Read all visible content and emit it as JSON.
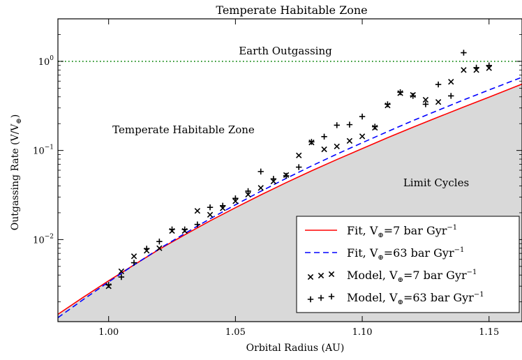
{
  "chart_data": {
    "type": "scatter",
    "title": "Temperate Habitable Zone",
    "xlabel": "Orbital Radius (AU)",
    "ylabel": "Outgassing Rate (V/V",
    "ylabel_sub": "⊕",
    "ylabel_close": ")",
    "xlim": [
      0.98,
      1.163
    ],
    "ylim": [
      0.0012,
      3.0
    ],
    "yscale": "log",
    "x_ticks": [
      1.0,
      1.05,
      1.1,
      1.15
    ],
    "x_tick_labels": [
      "1.00",
      "1.05",
      "1.10",
      "1.15"
    ],
    "y_ticks": [
      0.01,
      0.1,
      1
    ],
    "y_tick_labels": [
      {
        "base": "10",
        "exp": "−2"
      },
      {
        "base": "10",
        "exp": "−1"
      },
      {
        "base": "10",
        "exp": "0"
      }
    ],
    "grid": false,
    "legend_position": "lower-right",
    "annotations": {
      "earth": "Earth Outgassing",
      "thz": "Temperate Habitable Zone",
      "limit": "Limit Cycles"
    },
    "earth_line": 1.0,
    "series": [
      {
        "name_pre": "Fit, V",
        "name_sub": "⊕",
        "name_post": "=7 bar Gyr",
        "name_sup": "−1",
        "style": "line",
        "color": "#ff0000",
        "x": [
          0.98,
          0.99,
          1.0,
          1.01,
          1.02,
          1.03,
          1.04,
          1.05,
          1.06,
          1.07,
          1.08,
          1.09,
          1.1,
          1.11,
          1.12,
          1.13,
          1.14,
          1.15,
          1.163
        ],
        "y": [
          0.00145,
          0.00225,
          0.00345,
          0.0052,
          0.0078,
          0.0113,
          0.0162,
          0.0228,
          0.0317,
          0.0435,
          0.059,
          0.079,
          0.105,
          0.139,
          0.182,
          0.237,
          0.307,
          0.396,
          0.556
        ]
      },
      {
        "name_pre": "Fit, V",
        "name_sub": "⊕",
        "name_post": "=63 bar Gyr",
        "name_sup": "−1",
        "style": "dashed",
        "color": "#0000ff",
        "x": [
          0.98,
          0.99,
          1.0,
          1.01,
          1.02,
          1.03,
          1.04,
          1.05,
          1.06,
          1.07,
          1.08,
          1.09,
          1.1,
          1.11,
          1.12,
          1.13,
          1.14,
          1.15,
          1.163
        ],
        "y": [
          0.00133,
          0.00212,
          0.00335,
          0.0052,
          0.0079,
          0.0117,
          0.0171,
          0.0246,
          0.0348,
          0.0486,
          0.067,
          0.091,
          0.122,
          0.163,
          0.216,
          0.283,
          0.369,
          0.478,
          0.663
        ]
      },
      {
        "name_pre": "Model, V",
        "name_sub": "⊕",
        "name_post": "=7 bar Gyr",
        "name_sup": "−1",
        "style": "x",
        "color": "#000000",
        "x": [
          1.0,
          1.005,
          1.01,
          1.015,
          1.02,
          1.025,
          1.03,
          1.035,
          1.04,
          1.045,
          1.05,
          1.055,
          1.06,
          1.065,
          1.07,
          1.075,
          1.08,
          1.085,
          1.09,
          1.095,
          1.1,
          1.105,
          1.11,
          1.115,
          1.12,
          1.125,
          1.13,
          1.135,
          1.14,
          1.145,
          1.15
        ],
        "y": [
          0.003,
          0.0044,
          0.0065,
          0.0075,
          0.008,
          0.0125,
          0.0125,
          0.021,
          0.019,
          0.0225,
          0.027,
          0.032,
          0.038,
          0.045,
          0.053,
          0.088,
          0.123,
          0.103,
          0.111,
          0.128,
          0.144,
          0.18,
          0.32,
          0.44,
          0.42,
          0.37,
          0.35,
          0.59,
          0.8,
          0.8,
          0.84
        ]
      },
      {
        "name_pre": "Model, V",
        "name_sub": "⊕",
        "name_post": "=63 bar Gyr",
        "name_sup": "−1",
        "style": "plus",
        "color": "#000000",
        "x": [
          1.0,
          1.005,
          1.01,
          1.015,
          1.02,
          1.025,
          1.03,
          1.035,
          1.04,
          1.045,
          1.05,
          1.055,
          1.06,
          1.065,
          1.07,
          1.075,
          1.08,
          1.085,
          1.09,
          1.095,
          1.1,
          1.105,
          1.11,
          1.115,
          1.12,
          1.125,
          1.13,
          1.135,
          1.14,
          1.145,
          1.15
        ],
        "y": [
          0.0031,
          0.0038,
          0.0055,
          0.0079,
          0.0095,
          0.013,
          0.013,
          0.0148,
          0.023,
          0.024,
          0.029,
          0.035,
          0.058,
          0.048,
          0.052,
          0.065,
          0.125,
          0.143,
          0.192,
          0.195,
          0.24,
          0.185,
          0.33,
          0.45,
          0.41,
          0.33,
          0.55,
          0.41,
          1.25,
          0.85,
          0.9
        ]
      }
    ]
  }
}
